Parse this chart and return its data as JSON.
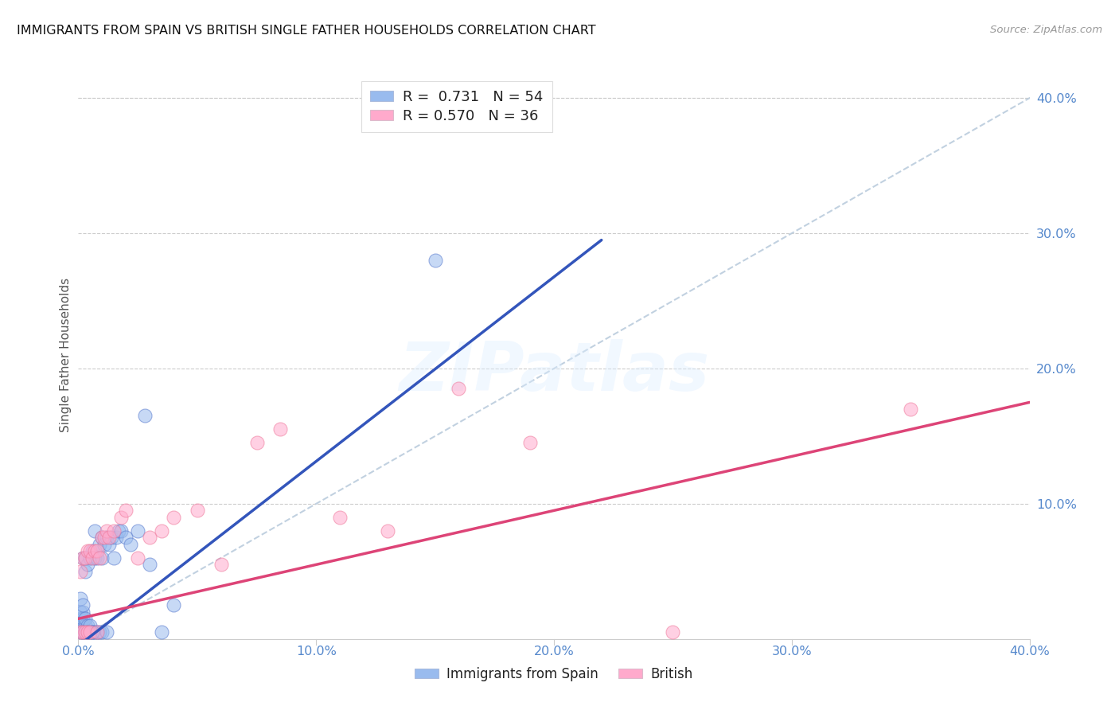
{
  "title": "IMMIGRANTS FROM SPAIN VS BRITISH SINGLE FATHER HOUSEHOLDS CORRELATION CHART",
  "source": "Source: ZipAtlas.com",
  "ylabel": "Single Father Households",
  "xlim": [
    0.0,
    0.4
  ],
  "ylim": [
    0.0,
    0.42
  ],
  "xticks": [
    0.0,
    0.1,
    0.2,
    0.3,
    0.4
  ],
  "yticks": [
    0.1,
    0.2,
    0.3,
    0.4
  ],
  "xticklabels": [
    "0.0%",
    "10.0%",
    "20.0%",
    "30.0%",
    "40.0%"
  ],
  "yticklabels": [
    "10.0%",
    "20.0%",
    "30.0%",
    "40.0%"
  ],
  "blue_R": "0.731",
  "blue_N": "54",
  "pink_R": "0.570",
  "pink_N": "36",
  "blue_fill": "#99BBEE",
  "blue_edge": "#5577CC",
  "pink_fill": "#FFAACC",
  "pink_edge": "#EE7799",
  "blue_line": "#3355BB",
  "pink_line": "#DD4477",
  "diag_color": "#BBCCDD",
  "watermark": "ZIPatlas",
  "legend_blue": "Immigrants from Spain",
  "legend_pink": "British",
  "bg": "#FFFFFF",
  "grid_color": "#CCCCCC",
  "tick_color": "#5588CC",
  "blue_reg": [
    0.0,
    -0.005,
    0.22,
    0.295
  ],
  "pink_reg": [
    0.0,
    0.015,
    0.4,
    0.175
  ],
  "diag": [
    0.0,
    0.0,
    0.42,
    0.42
  ],
  "blue_x": [
    0.001,
    0.001,
    0.001,
    0.001,
    0.001,
    0.002,
    0.002,
    0.002,
    0.002,
    0.002,
    0.002,
    0.003,
    0.003,
    0.003,
    0.003,
    0.003,
    0.004,
    0.004,
    0.004,
    0.005,
    0.005,
    0.005,
    0.006,
    0.006,
    0.007,
    0.007,
    0.007,
    0.008,
    0.008,
    0.009,
    0.009,
    0.01,
    0.01,
    0.01,
    0.011,
    0.012,
    0.012,
    0.013,
    0.014,
    0.015,
    0.016,
    0.017,
    0.018,
    0.02,
    0.022,
    0.025,
    0.028,
    0.03,
    0.035,
    0.04,
    0.002,
    0.004,
    0.006,
    0.15
  ],
  "blue_y": [
    0.005,
    0.01,
    0.015,
    0.02,
    0.03,
    0.005,
    0.01,
    0.015,
    0.02,
    0.025,
    0.06,
    0.005,
    0.01,
    0.015,
    0.05,
    0.06,
    0.005,
    0.01,
    0.055,
    0.005,
    0.01,
    0.06,
    0.005,
    0.065,
    0.005,
    0.06,
    0.08,
    0.005,
    0.06,
    0.005,
    0.07,
    0.005,
    0.06,
    0.075,
    0.07,
    0.005,
    0.075,
    0.07,
    0.075,
    0.06,
    0.075,
    0.08,
    0.08,
    0.075,
    0.07,
    0.08,
    0.165,
    0.055,
    0.005,
    0.025,
    0.005,
    0.005,
    0.005,
    0.28
  ],
  "pink_x": [
    0.001,
    0.001,
    0.002,
    0.002,
    0.003,
    0.003,
    0.004,
    0.004,
    0.005,
    0.005,
    0.006,
    0.007,
    0.008,
    0.008,
    0.009,
    0.01,
    0.011,
    0.012,
    0.013,
    0.015,
    0.018,
    0.02,
    0.025,
    0.03,
    0.035,
    0.04,
    0.05,
    0.06,
    0.075,
    0.085,
    0.11,
    0.13,
    0.16,
    0.19,
    0.25,
    0.35
  ],
  "pink_y": [
    0.005,
    0.05,
    0.005,
    0.06,
    0.005,
    0.06,
    0.005,
    0.065,
    0.005,
    0.065,
    0.06,
    0.065,
    0.005,
    0.065,
    0.06,
    0.075,
    0.075,
    0.08,
    0.075,
    0.08,
    0.09,
    0.095,
    0.06,
    0.075,
    0.08,
    0.09,
    0.095,
    0.055,
    0.145,
    0.155,
    0.09,
    0.08,
    0.185,
    0.145,
    0.005,
    0.17
  ]
}
